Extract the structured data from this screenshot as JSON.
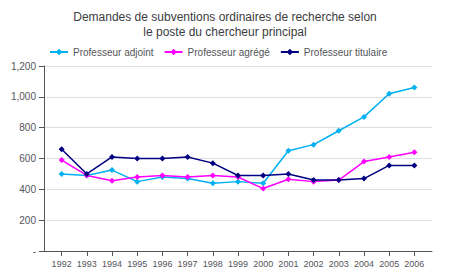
{
  "chart_data": {
    "type": "line",
    "title": "Demandes de subventions ordinaires de recherche selon\nle poste du chercheur principal",
    "x": [
      1992,
      1993,
      1994,
      1995,
      1996,
      1997,
      1998,
      1999,
      2000,
      2001,
      2002,
      2003,
      2004,
      2005,
      2006
    ],
    "series": [
      {
        "name": "Professeur adjoint",
        "color": "#00B0F0",
        "values": [
          500,
          490,
          525,
          450,
          480,
          470,
          440,
          450,
          440,
          650,
          690,
          780,
          870,
          1020,
          1060
        ]
      },
      {
        "name": "Professeur agrégé",
        "color": "#FF00FF",
        "values": [
          590,
          490,
          455,
          480,
          490,
          480,
          490,
          480,
          405,
          465,
          450,
          460,
          580,
          610,
          640
        ]
      },
      {
        "name": "Professeur titulaire",
        "color": "#000080",
        "values": [
          660,
          500,
          610,
          600,
          600,
          610,
          570,
          490,
          490,
          500,
          460,
          460,
          470,
          555,
          555
        ]
      }
    ],
    "xlim": [
      1991.3,
      2006.7
    ],
    "xticks": [
      1992,
      1993,
      1994,
      1995,
      1996,
      1997,
      1998,
      1999,
      2000,
      2001,
      2002,
      2003,
      2004,
      2005,
      2006
    ],
    "ylim": [
      0,
      1200
    ],
    "yticks": [
      {
        "value": 0,
        "label": "-"
      },
      200,
      400,
      600,
      800,
      {
        "value": 1000,
        "label": "1,000"
      },
      {
        "value": 1200,
        "label": "1,200"
      }
    ],
    "grid": true,
    "legend": "upper left",
    "marker": "diamond"
  }
}
